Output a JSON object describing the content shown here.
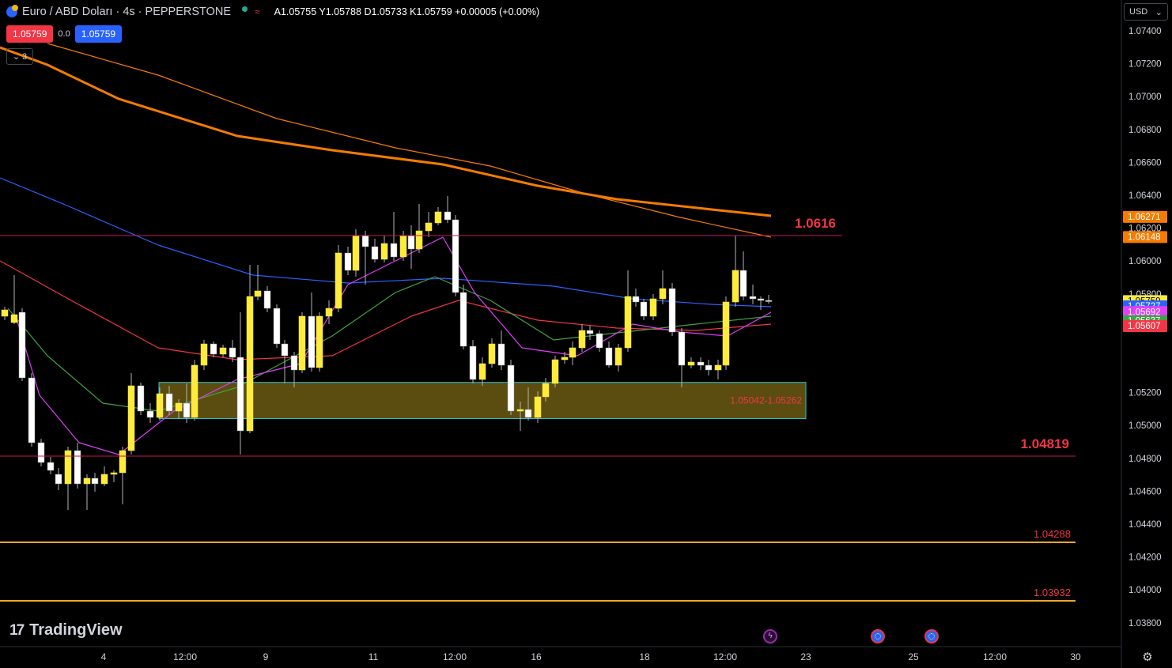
{
  "header": {
    "symbol_title": "Euro / ABD Doları · 4s · PEPPERSTONE",
    "ohlc": {
      "a": "A1.05755",
      "y": "Y1.05788",
      "d": "D1.05733",
      "k": "K1.05759",
      "change": "+0.00005 (+0.00%)"
    },
    "sell_price": "1.05759",
    "spread": "0.0",
    "buy_price": "1.05759",
    "collapse_count": "3",
    "currency": "USD"
  },
  "price_axis": {
    "ticks": [
      "1.07400",
      "1.07200",
      "1.07000",
      "1.06800",
      "1.06600",
      "1.06400",
      "1.06200",
      "1.06000",
      "1.05800",
      "1.05200",
      "1.05000",
      "1.04800",
      "1.04600",
      "1.04400",
      "1.04200",
      "1.04000",
      "1.03800"
    ],
    "badges": [
      {
        "value": "1.06271",
        "color": "#f57c00"
      },
      {
        "value": "1.06148",
        "color": "#f57c00"
      },
      {
        "value": "1.05759",
        "sub": "03:18:31",
        "color": "#ffeb3b"
      },
      {
        "value": "1.05727",
        "color": "#2962ff"
      },
      {
        "value": "1.05692",
        "color": "#e040fb"
      },
      {
        "value": "1.05637",
        "color": "#43a047"
      },
      {
        "value": "1.05607",
        "color": "#f23645"
      }
    ]
  },
  "time_axis": {
    "labels": [
      "4",
      "12:00",
      "9",
      "11",
      "12:00",
      "16",
      "18",
      "12:00",
      "23",
      "25",
      "12:00",
      "30"
    ]
  },
  "levels": [
    {
      "value": "1.0616",
      "color": "#f23645"
    },
    {
      "value": "1.04819",
      "color": "#f23645"
    },
    {
      "value": "1.04288",
      "color": "#f23645"
    },
    {
      "value": "1.03932",
      "color": "#f23645"
    }
  ],
  "zone": {
    "label": "1.05042-1.05262",
    "low": 1.05042,
    "high": 1.05262
  },
  "brand": {
    "name": "TradingView"
  },
  "icons": {
    "settings": "gear-icon",
    "collapse": "chevron-down-icon",
    "currency_dropdown": "chevron-down-icon",
    "events": [
      "lightning-icon",
      "eu-flag-icon",
      "eu-flag-icon"
    ]
  }
}
